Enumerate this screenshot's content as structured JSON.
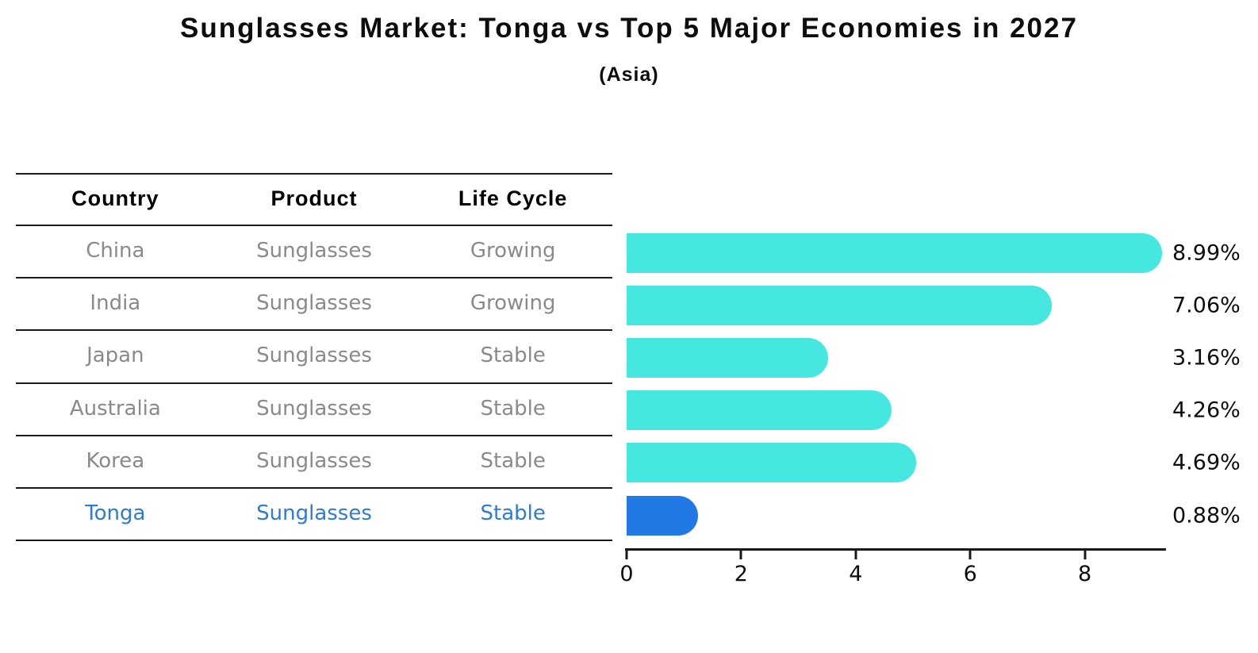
{
  "title": "Sunglasses Market: Tonga vs Top 5 Major Economies in 2027",
  "subtitle": "(Asia)",
  "table": {
    "headers": [
      "Country",
      "Product",
      "Life Cycle"
    ],
    "rows": [
      {
        "country": "China",
        "product": "Sunglasses",
        "life_cycle": "Growing",
        "highlight": false
      },
      {
        "country": "India",
        "product": "Sunglasses",
        "life_cycle": "Growing",
        "highlight": false
      },
      {
        "country": "Japan",
        "product": "Sunglasses",
        "life_cycle": "Stable",
        "highlight": false
      },
      {
        "country": "Australia",
        "product": "Sunglasses",
        "life_cycle": "Stable",
        "highlight": false
      },
      {
        "country": "Korea",
        "product": "Sunglasses",
        "life_cycle": "Stable",
        "highlight": false
      },
      {
        "country": "Tonga",
        "product": "Sunglasses",
        "life_cycle": "Stable",
        "highlight": true
      }
    ]
  },
  "chart_data": {
    "type": "bar",
    "orientation": "horizontal",
    "categories": [
      "China",
      "India",
      "Japan",
      "Australia",
      "Korea",
      "Tonga"
    ],
    "values": [
      8.99,
      7.06,
      3.16,
      4.26,
      4.69,
      0.88
    ],
    "value_labels": [
      "8.99%",
      "7.06%",
      "3.16%",
      "4.26%",
      "4.69%",
      "0.88%"
    ],
    "x_ticks": [
      "0",
      "2",
      "4",
      "6",
      "8"
    ],
    "xlim": [
      0,
      9.4
    ],
    "grid": false,
    "legend": "none",
    "highlight_category": "Tonga",
    "colors": {
      "bar": "#46E6E1",
      "bar_highlight": "#2079E4",
      "highlight_text": "#2C7CD5",
      "row_text": "#8A8A8A",
      "header_text": "#000000",
      "axis": "#1A1A1A"
    }
  }
}
